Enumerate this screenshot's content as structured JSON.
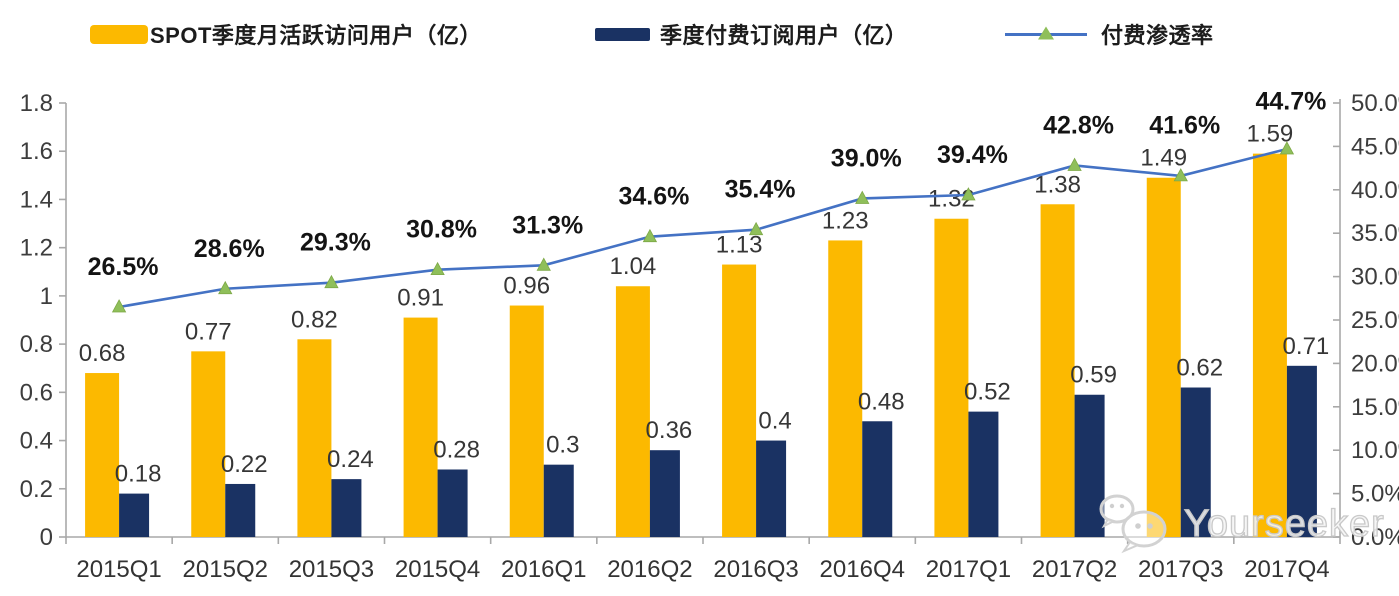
{
  "legend": {
    "items": [
      {
        "label": "SPOT季度月活跃访问用户（亿）",
        "swatch": "bar",
        "color": "#FCB900"
      },
      {
        "label": "季度付费订阅用户（亿）",
        "swatch": "bar",
        "color": "#1A3263"
      },
      {
        "label": "付费渗透率",
        "swatch": "line-triangle",
        "line_color": "#4472C4",
        "marker_color": "#8FBF5A"
      }
    ]
  },
  "watermark": {
    "text": "Yourseeker",
    "icon": "wechat-icon"
  },
  "chart_data": {
    "type": "bar",
    "subtype": "combo-bar-line",
    "title": "",
    "xlabel": "",
    "ylabel": "",
    "grid": false,
    "legend_position": "top",
    "categories": [
      "2015Q1",
      "2015Q2",
      "2015Q3",
      "2015Q4",
      "2016Q1",
      "2016Q2",
      "2016Q3",
      "2016Q4",
      "2017Q1",
      "2017Q2",
      "2017Q3",
      "2017Q4"
    ],
    "series": [
      {
        "name": "SPOT季度月活跃访问用户（亿）",
        "type": "bar",
        "axis": "left",
        "color": "#FCB900",
        "values": [
          0.68,
          0.77,
          0.82,
          0.91,
          0.96,
          1.04,
          1.13,
          1.23,
          1.32,
          1.38,
          1.49,
          1.59
        ],
        "labels": [
          "0.68",
          "0.77",
          "0.82",
          "0.91",
          "0.96",
          "1.04",
          "1.13",
          "1.23",
          "1.32",
          "1.38",
          "1.49",
          "1.59"
        ]
      },
      {
        "name": "季度付费订阅用户（亿）",
        "type": "bar",
        "axis": "left",
        "color": "#1A3263",
        "values": [
          0.18,
          0.22,
          0.24,
          0.28,
          0.3,
          0.36,
          0.4,
          0.48,
          0.52,
          0.59,
          0.62,
          0.71
        ],
        "labels": [
          "0.18",
          "0.22",
          "0.24",
          "0.28",
          "0.3",
          "0.36",
          "0.4",
          "0.48",
          "0.52",
          "0.59",
          "0.62",
          "0.71"
        ]
      },
      {
        "name": "付费渗透率",
        "type": "line",
        "axis": "right",
        "color": "#4472C4",
        "marker": "triangle",
        "marker_color": "#8FBF5A",
        "values": [
          26.5,
          28.6,
          29.3,
          30.8,
          31.3,
          34.6,
          35.4,
          39.0,
          39.4,
          42.8,
          41.6,
          44.7
        ],
        "labels": [
          "26.5%",
          "28.6%",
          "29.3%",
          "30.8%",
          "31.3%",
          "34.6%",
          "35.4%",
          "39.0%",
          "39.4%",
          "42.8%",
          "41.6%",
          "44.7%"
        ]
      }
    ],
    "left_axis": {
      "min": 0,
      "max": 1.8,
      "tick_labels": [
        "0",
        "0.2",
        "0.4",
        "0.6",
        "0.8",
        "1",
        "1.2",
        "1.4",
        "1.6",
        "1.8"
      ]
    },
    "right_axis": {
      "min": 0,
      "max": 50,
      "tick_labels": [
        "0.0%",
        "5.0%",
        "10.0%",
        "15.0%",
        "20.0%",
        "25.0%",
        "30.0%",
        "35.0%",
        "40.0%",
        "45.0%",
        "50.0%"
      ]
    }
  }
}
